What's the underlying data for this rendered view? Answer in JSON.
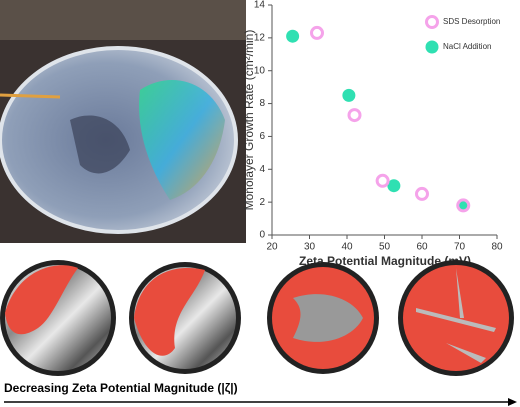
{
  "chart_data": {
    "type": "scatter",
    "x_label": "Zeta Potential Magnitude (mV)",
    "y_label": "Monolayer Growth Rate (cm²/min)",
    "xlim": [
      20,
      80
    ],
    "xticks": [
      20,
      30,
      40,
      50,
      60,
      70,
      80
    ],
    "ylim": [
      0,
      14
    ],
    "yticks": [
      0,
      2,
      4,
      6,
      8,
      10,
      12,
      14
    ],
    "legend": "upper right",
    "series": [
      {
        "name": "SDS Desorption",
        "color": "#f5a3ea",
        "marker": "open",
        "x": [
          32,
          42,
          49.5,
          60,
          71
        ],
        "values": [
          12.3,
          7.3,
          3.3,
          2.5,
          1.8
        ]
      },
      {
        "name": "NaCl Addition",
        "color": "#2fe0b2",
        "marker": "filled",
        "x": [
          25.5,
          40.5,
          52.5,
          71
        ],
        "values": [
          12.1,
          8.5,
          3.0,
          1.8
        ]
      }
    ]
  },
  "caption": "Decreasing Zeta Potential Magnitude (|ζ|)"
}
